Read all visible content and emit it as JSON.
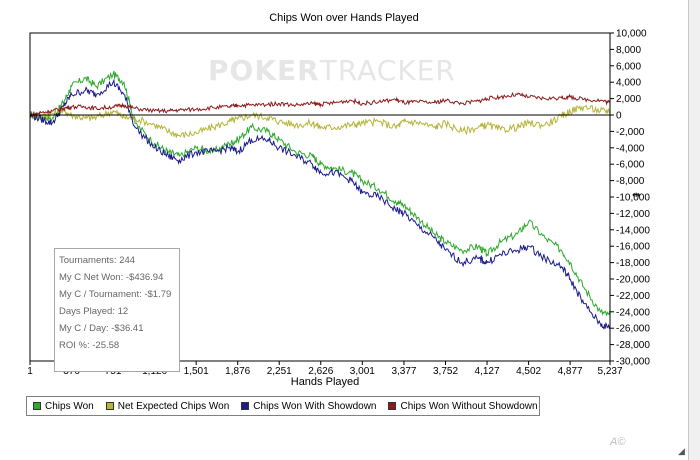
{
  "title": "Chips Won over Hands Played",
  "watermark": {
    "part1": "POKER",
    "part2": "TRACKER"
  },
  "stats": [
    "Tournaments: 244",
    "My C Net Won: -$436.94",
    "My C / Tournament: -$1.79",
    "Days Played: 12",
    "My C / Day: -$36.41",
    "ROI %: -25.58"
  ],
  "legend": [
    {
      "label": "Chips Won",
      "color": "#2eaa2e"
    },
    {
      "label": "Net Expected Chips Won",
      "color": "#b5b53a"
    },
    {
      "label": "Chips Won With Showdown",
      "color": "#1c1c8c"
    },
    {
      "label": "Chips Won Without Showdown",
      "color": "#8c1c1c"
    }
  ],
  "cursor_glyph": "⇹",
  "corner_mark": "A©",
  "resize_grip": "◢",
  "chart_data": {
    "type": "line",
    "title": "Chips Won over Hands Played",
    "xlabel": "Hands Played",
    "ylabel": "",
    "xlim": [
      1,
      5237
    ],
    "ylim": [
      -30000,
      10000
    ],
    "x_ticks": [
      1,
      376,
      751,
      1126,
      1501,
      1876,
      2251,
      2626,
      3001,
      3377,
      3752,
      4127,
      4502,
      4877,
      5237
    ],
    "x_tick_labels": [
      "1",
      "376",
      "751",
      "1,126",
      "1,501",
      "1,876",
      "2,251",
      "2,626",
      "3,001",
      "3,377",
      "3,752",
      "4,127",
      "4,502",
      "4,877",
      "5,237"
    ],
    "y_ticks": [
      10000,
      8000,
      6000,
      4000,
      2000,
      0,
      -2000,
      -4000,
      -6000,
      -8000,
      -10000,
      -12000,
      -14000,
      -16000,
      -18000,
      -20000,
      -22000,
      -24000,
      -26000,
      -28000,
      -30000
    ],
    "y_tick_labels": [
      "10,000",
      "8,000",
      "6,000",
      "4,000",
      "2,000",
      "0",
      "-2,000",
      "-4,000",
      "-6,000",
      "-8,000",
      "-10,000",
      "-12,000",
      "-14,000",
      "-16,000",
      "-18,000",
      "-20,000",
      "-22,000",
      "-24,000",
      "-26,000",
      "-28,000",
      "-30,000"
    ],
    "y_axis_side": "right",
    "grid": false,
    "legend_position": "bottom",
    "series": [
      {
        "name": "Chips Won",
        "color": "#2eaa2e",
        "x": [
          1,
          100,
          200,
          300,
          376,
          500,
          600,
          751,
          850,
          950,
          1126,
          1250,
          1350,
          1501,
          1650,
          1800,
          1876,
          2000,
          2150,
          2251,
          2400,
          2550,
          2626,
          2750,
          2900,
          3001,
          3150,
          3300,
          3377,
          3500,
          3650,
          3752,
          3900,
          4050,
          4127,
          4250,
          4400,
          4502,
          4650,
          4800,
          4877,
          5000,
          5150,
          5237
        ],
        "y": [
          0,
          0,
          -500,
          1500,
          3500,
          4500,
          3500,
          5000,
          4000,
          -1000,
          -3500,
          -4500,
          -5000,
          -4000,
          -4500,
          -3500,
          -3000,
          -1500,
          -2000,
          -3000,
          -4500,
          -5000,
          -6000,
          -6500,
          -7000,
          -8000,
          -9000,
          -10500,
          -11000,
          -12500,
          -14500,
          -15500,
          -16500,
          -16000,
          -17000,
          -15500,
          -14500,
          -13000,
          -15000,
          -16500,
          -18000,
          -21000,
          -24000,
          -24500
        ]
      },
      {
        "name": "Net Expected Chips Won",
        "color": "#b5b53a",
        "x": [
          1,
          100,
          200,
          300,
          376,
          500,
          600,
          751,
          850,
          950,
          1126,
          1250,
          1350,
          1501,
          1650,
          1800,
          1876,
          2000,
          2150,
          2251,
          2400,
          2550,
          2626,
          2750,
          2900,
          3001,
          3150,
          3300,
          3377,
          3500,
          3650,
          3752,
          3900,
          4050,
          4127,
          4250,
          4400,
          4502,
          4650,
          4800,
          4877,
          5000,
          5150,
          5237
        ],
        "y": [
          0,
          -200,
          200,
          500,
          0,
          -400,
          -300,
          500,
          -300,
          -400,
          -1200,
          -2000,
          -2500,
          -2200,
          -1500,
          -800,
          -500,
          0,
          -300,
          -800,
          -1200,
          -1000,
          -1500,
          -1500,
          -1200,
          -1000,
          -800,
          -1500,
          -800,
          -900,
          -1500,
          -1000,
          -2000,
          -1500,
          -1200,
          -1800,
          -1500,
          -1000,
          -1200,
          -200,
          500,
          1000,
          500,
          500
        ]
      },
      {
        "name": "Chips Won With Showdown",
        "color": "#1c1c8c",
        "x": [
          1,
          100,
          200,
          300,
          376,
          500,
          600,
          751,
          850,
          950,
          1126,
          1250,
          1350,
          1501,
          1650,
          1800,
          1876,
          2000,
          2150,
          2251,
          2400,
          2550,
          2626,
          2750,
          2900,
          3001,
          3150,
          3300,
          3377,
          3500,
          3650,
          3752,
          3900,
          4050,
          4127,
          4250,
          4400,
          4502,
          4650,
          4800,
          4877,
          5000,
          5150,
          5237
        ],
        "y": [
          0,
          -500,
          -1000,
          1000,
          2500,
          3000,
          2500,
          4000,
          2500,
          -1500,
          -4000,
          -5000,
          -5500,
          -4500,
          -4500,
          -4000,
          -4500,
          -3000,
          -3000,
          -4000,
          -5000,
          -6000,
          -7000,
          -7000,
          -8000,
          -9500,
          -10000,
          -11500,
          -12000,
          -13500,
          -15000,
          -16500,
          -18000,
          -17500,
          -18000,
          -17000,
          -16500,
          -16000,
          -17500,
          -18500,
          -20000,
          -23000,
          -25500,
          -26000
        ]
      },
      {
        "name": "Chips Won Without Showdown",
        "color": "#8c1c1c",
        "x": [
          1,
          100,
          200,
          300,
          376,
          500,
          600,
          751,
          850,
          950,
          1126,
          1250,
          1350,
          1501,
          1650,
          1800,
          1876,
          2000,
          2150,
          2251,
          2400,
          2550,
          2626,
          2750,
          2900,
          3001,
          3150,
          3300,
          3377,
          3500,
          3650,
          3752,
          3900,
          4050,
          4127,
          4250,
          4400,
          4502,
          4650,
          4800,
          4877,
          5000,
          5150,
          5237
        ],
        "y": [
          0,
          300,
          500,
          800,
          1000,
          1000,
          800,
          1000,
          1200,
          800,
          500,
          500,
          600,
          700,
          900,
          1000,
          1200,
          1200,
          1300,
          1400,
          1200,
          1400,
          1300,
          1500,
          1800,
          1400,
          1600,
          1900,
          1500,
          1600,
          1500,
          1800,
          1400,
          1700,
          2000,
          2200,
          2500,
          2200,
          2000,
          2100,
          2200,
          1900,
          1800,
          1500
        ]
      }
    ]
  }
}
